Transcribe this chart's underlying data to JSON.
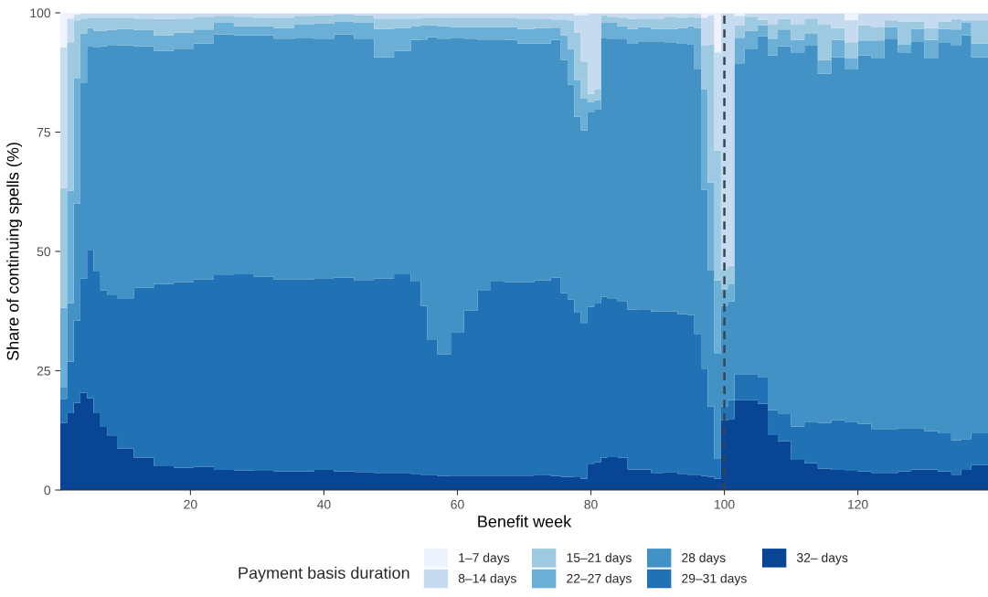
{
  "chart_data": {
    "type": "area",
    "stacked": true,
    "xlabel": "Benefit week",
    "ylabel": "Share of continuing spells (%)",
    "legend_title": "Payment basis duration",
    "x": [
      1,
      2,
      3,
      4,
      5,
      6,
      7,
      8,
      10,
      13,
      16,
      19,
      22,
      25,
      28,
      31,
      34,
      37,
      40,
      43,
      46,
      49,
      52,
      54,
      55,
      56,
      58,
      60,
      62,
      64,
      66,
      68,
      70,
      73,
      75,
      76,
      77,
      78,
      79,
      80,
      81,
      82,
      83,
      85,
      86,
      88,
      90,
      92,
      94,
      95,
      96,
      97,
      98,
      99,
      100,
      101,
      102,
      104,
      106,
      107,
      109,
      111,
      113,
      115,
      117,
      119,
      121,
      123,
      125,
      127,
      129,
      131,
      133,
      135,
      136,
      138,
      139
    ],
    "series": [
      {
        "name": "32– days",
        "color": "#084594",
        "values": [
          14.1,
          16.1,
          18.3,
          20.4,
          19.2,
          16.1,
          13.2,
          11.3,
          8.7,
          6.8,
          5.0,
          4.7,
          4.9,
          4.2,
          4.1,
          4.0,
          3.9,
          3.9,
          4.2,
          3.9,
          3.8,
          3.6,
          3.6,
          3.4,
          3.2,
          3.2,
          2.9,
          3.0,
          3.0,
          3.0,
          3.0,
          3.0,
          3.0,
          3.2,
          2.9,
          2.8,
          2.8,
          2.7,
          2.4,
          5.5,
          5.8,
          6.8,
          6.9,
          6.8,
          4.3,
          4.3,
          3.6,
          3.8,
          3.4,
          3.2,
          3.2,
          2.9,
          2.8,
          2.4,
          14.6,
          14.9,
          18.8,
          18.8,
          18.1,
          11.5,
          10.2,
          6.3,
          5.6,
          4.5,
          4.2,
          4.0,
          3.9,
          3.6,
          3.6,
          3.9,
          4.3,
          4.3,
          3.9,
          3.2,
          4.2,
          5.2,
          5.2
        ]
      },
      {
        "name": "29–31 days",
        "color": "#2171b5",
        "values": [
          5.0,
          10.8,
          17.2,
          23.9,
          31.0,
          29.7,
          28.6,
          29.5,
          31.5,
          35.6,
          38.2,
          38.9,
          39.2,
          40.8,
          41.1,
          40.7,
          40.2,
          40.2,
          40.2,
          40.6,
          40.2,
          40.7,
          41.6,
          40.3,
          35.4,
          28.2,
          25.5,
          30.1,
          34.6,
          38.9,
          40.7,
          40.6,
          40.6,
          40.7,
          41.6,
          38.5,
          37.1,
          34.6,
          32.6,
          32.9,
          33.3,
          33.7,
          33.3,
          32.8,
          33.5,
          33.6,
          33.8,
          33.6,
          33.5,
          33.5,
          29.5,
          22.4,
          14.7,
          4.1,
          2.9,
          3.9,
          5.5,
          5.5,
          5.6,
          5.2,
          5.7,
          7.0,
          8.7,
          9.6,
          10.4,
          10.3,
          10.0,
          9.2,
          9.2,
          9.1,
          8.7,
          8.0,
          8.0,
          7.2,
          6.5,
          6.7,
          6.7
        ]
      },
      {
        "name": "28 days",
        "color": "#4292c6",
        "values": [
          2.5,
          12.3,
          24.5,
          41.1,
          42.7,
          46.9,
          51.2,
          52.3,
          53.0,
          50.6,
          48.8,
          48.9,
          49.5,
          50.5,
          50.1,
          50.6,
          50.5,
          50.7,
          50.2,
          51.0,
          50.6,
          46.4,
          46.8,
          50.6,
          55.8,
          63.5,
          66.2,
          61.7,
          57.0,
          52.5,
          50.7,
          50.7,
          50.0,
          49.7,
          49.8,
          48.8,
          45.0,
          40.9,
          40.4,
          40.7,
          40.6,
          54.3,
          54.4,
          55.0,
          55.7,
          56.1,
          56.6,
          56.4,
          56.6,
          56.6,
          55.4,
          37.6,
          28.5,
          22.2,
          21.1,
          20.7,
          65.1,
          68.2,
          71.4,
          74.4,
          77.1,
          78.4,
          78.8,
          73.1,
          76.1,
          73.8,
          77.2,
          77.6,
          81.8,
          78.7,
          81.0,
          78.1,
          81.9,
          82.7,
          84.6,
          78.8,
          78.8
        ]
      },
      {
        "name": "22–27 days",
        "color": "#6baed6",
        "values": [
          16.6,
          23.5,
          26.2,
          10.3,
          3.9,
          3.5,
          3.2,
          3.3,
          3.4,
          3.4,
          3.3,
          3.4,
          2.9,
          2.4,
          1.9,
          1.9,
          2.2,
          2.7,
          3.1,
          2.6,
          3.3,
          5.9,
          4.8,
          2.9,
          2.9,
          2.5,
          2.6,
          2.2,
          2.4,
          2.6,
          2.6,
          2.7,
          3.0,
          3.2,
          2.6,
          5.2,
          7.5,
          7.7,
          6.6,
          2.2,
          2.0,
          3.1,
          3.3,
          2.6,
          3.1,
          3.0,
          2.6,
          2.8,
          3.3,
          3.9,
          8.7,
          21.0,
          18.4,
          15.2,
          3.5,
          3.6,
          5.4,
          3.7,
          2.3,
          3.5,
          3.5,
          2.6,
          2.5,
          2.9,
          3.6,
          2.3,
          3.1,
          3.8,
          2.4,
          1.6,
          2.6,
          3.9,
          2.8,
          3.4,
          2.6,
          2.9,
          2.9
        ]
      },
      {
        "name": "15–21 days",
        "color": "#9ecae1",
        "values": [
          25.1,
          31.1,
          12.2,
          3.1,
          2.2,
          2.8,
          2.8,
          2.6,
          2.4,
          2.4,
          3.4,
          2.9,
          2.7,
          1.5,
          2.0,
          1.8,
          2.2,
          1.9,
          1.8,
          1.5,
          1.6,
          2.2,
          2.0,
          1.6,
          1.7,
          1.6,
          1.8,
          2.0,
          2.0,
          2.0,
          2.0,
          2.0,
          2.2,
          2.0,
          1.7,
          3.3,
          6.0,
          10.0,
          7.8,
          1.7,
          2.2,
          1.6,
          1.3,
          1.8,
          2.1,
          1.8,
          2.2,
          2.6,
          2.2,
          2.0,
          2.2,
          9.2,
          28.9,
          27.2,
          4.2,
          3.9,
          2.6,
          3.0,
          1.1,
          2.9,
          2.2,
          3.2,
          3.2,
          7.4,
          2.5,
          3.4,
          3.2,
          2.9,
          1.4,
          4.9,
          1.6,
          2.5,
          1.6,
          2.2,
          0.5,
          4.8,
          4.8
        ]
      },
      {
        "name": "8–14 days",
        "color": "#c6dbef",
        "values": [
          29.4,
          5.0,
          1.3,
          1.0,
          0.8,
          0.8,
          0.8,
          0.8,
          0.8,
          1.0,
          1.1,
          1.0,
          0.6,
          0.4,
          0.6,
          0.8,
          0.8,
          0.4,
          0.3,
          0.2,
          0.3,
          1.0,
          1.0,
          1.0,
          0.8,
          0.8,
          0.8,
          0.8,
          0.8,
          0.8,
          0.8,
          0.8,
          1.0,
          1.0,
          1.2,
          1.2,
          1.4,
          3.6,
          9.7,
          16.8,
          15.9,
          0.3,
          0.6,
          0.8,
          1.1,
          1.0,
          1.0,
          0.6,
          0.8,
          0.6,
          0.8,
          5.9,
          6.2,
          20.6,
          53.5,
          52.8,
          2.0,
          0.6,
          1.3,
          2.3,
          1.1,
          2.3,
          1.0,
          2.3,
          3.0,
          4.7,
          2.4,
          2.7,
          1.4,
          1.6,
          1.6,
          3.0,
          1.6,
          1.1,
          1.4,
          1.4,
          1.4
        ]
      },
      {
        "name": "1–7 days",
        "color": "#eff3ff",
        "values": [
          7.3,
          1.2,
          0.3,
          0.2,
          0.2,
          0.2,
          0.2,
          0.2,
          0.2,
          0.2,
          0.2,
          0.2,
          0.2,
          0.2,
          0.2,
          0.2,
          0.2,
          0.2,
          0.2,
          0.2,
          0.2,
          0.2,
          0.2,
          0.2,
          0.2,
          0.2,
          0.2,
          0.2,
          0.2,
          0.2,
          0.2,
          0.2,
          0.2,
          0.2,
          0.2,
          0.2,
          0.2,
          0.5,
          0.5,
          0.2,
          0.2,
          0.2,
          0.2,
          0.2,
          0.2,
          0.2,
          0.2,
          0.2,
          0.2,
          0.2,
          0.2,
          1.0,
          0.5,
          8.3,
          0.2,
          0.2,
          0.6,
          0.2,
          0.2,
          0.2,
          0.2,
          0.2,
          0.2,
          0.2,
          0.2,
          1.5,
          0.2,
          0.2,
          0.2,
          0.2,
          0.2,
          0.2,
          0.2,
          0.2,
          0.2,
          0.2,
          0.2
        ]
      }
    ],
    "xlim": [
      0.5,
      139.5
    ],
    "ylim": [
      0,
      100
    ],
    "xticks": [
      20,
      40,
      60,
      80,
      100,
      120
    ],
    "yticks": [
      0,
      25,
      50,
      75,
      100
    ],
    "ref_lines": [
      {
        "axis": "x",
        "value": 100,
        "color": "#36454f",
        "line_style": "dashed"
      }
    ],
    "grid": false,
    "legend": "bottom"
  }
}
